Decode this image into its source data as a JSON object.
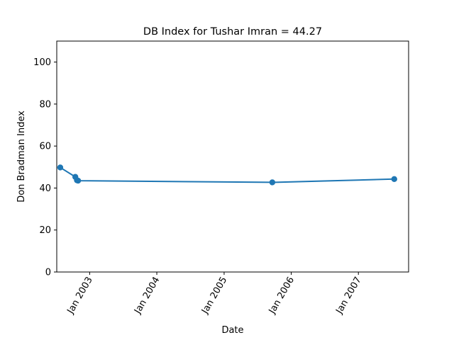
{
  "chart_data": {
    "type": "line",
    "title": "DB Index for Tushar Imran = 44.27",
    "xlabel": "Date",
    "ylabel": "Don Bradman Index",
    "x_ticks": [
      "Jan 2003",
      "Jan 2004",
      "Jan 2005",
      "Jan 2006",
      "Jan 2007"
    ],
    "y_ticks": [
      0,
      20,
      40,
      60,
      80,
      100
    ],
    "ylim": [
      0,
      110
    ],
    "xlim": [
      "2002-07-06",
      "2007-10-01"
    ],
    "grid": false,
    "series": [
      {
        "color": "#1f77b4",
        "points": [
          {
            "x": "2002-07-25",
            "y": 49.8
          },
          {
            "x": "2002-10-15",
            "y": 45.3
          },
          {
            "x": "2002-10-24",
            "y": 43.7
          },
          {
            "x": "2002-10-30",
            "y": 43.5
          },
          {
            "x": "2005-09-20",
            "y": 42.7
          },
          {
            "x": "2007-07-15",
            "y": 44.27
          }
        ]
      }
    ]
  }
}
